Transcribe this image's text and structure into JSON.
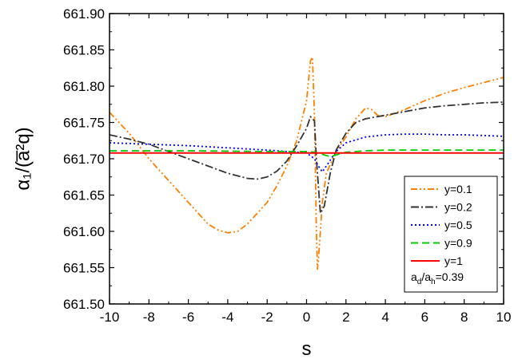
{
  "chart_data": {
    "type": "line",
    "xlabel": "s",
    "ylabel": "α₁/(a̅²q)",
    "xlim": [
      -10,
      10
    ],
    "ylim": [
      661.5,
      661.9
    ],
    "xticks": [
      -10,
      -8,
      -6,
      -4,
      -2,
      0,
      2,
      4,
      6,
      8,
      10
    ],
    "xtick_labels": [
      "-10",
      "-8",
      "-6",
      "-4",
      "-2",
      "0",
      "2",
      "4",
      "6",
      "8",
      "10"
    ],
    "yticks": [
      661.5,
      661.55,
      661.6,
      661.65,
      661.7,
      661.75,
      661.8,
      661.85,
      661.9
    ],
    "ytick_labels": [
      "661.50",
      "661.55",
      "661.60",
      "661.65",
      "661.70",
      "661.75",
      "661.80",
      "661.85",
      "661.90"
    ],
    "grid": false,
    "legend_position": "bottom-right",
    "annotation": "ad/ah=0.39",
    "series": [
      {
        "name": "y=0.1",
        "color": "#ff8000",
        "dash": "dash-dot-dot",
        "x": [
          -10,
          -9,
          -8,
          -7,
          -6,
          -5,
          -4.5,
          -4,
          -3.5,
          -3,
          -2,
          -1.5,
          -1,
          -0.5,
          0,
          0.2,
          0.3,
          0.4,
          0.5,
          0.55,
          0.6,
          0.8,
          1,
          1.5,
          2,
          2.5,
          3,
          3.3,
          3.6,
          4,
          5,
          6,
          7,
          8,
          9,
          10
        ],
        "y": [
          661.764,
          661.735,
          661.7,
          661.67,
          661.64,
          661.61,
          661.602,
          661.598,
          661.6,
          661.61,
          661.64,
          661.663,
          661.69,
          661.725,
          661.78,
          661.835,
          661.84,
          661.76,
          661.6,
          661.548,
          661.56,
          661.64,
          661.68,
          661.71,
          661.73,
          661.755,
          661.77,
          661.768,
          661.76,
          661.758,
          661.768,
          661.78,
          661.79,
          661.798,
          661.805,
          661.812
        ]
      },
      {
        "name": "y=0.2",
        "color": "#333333",
        "dash": "dash-dot",
        "x": [
          -10,
          -9,
          -8,
          -7,
          -6,
          -5,
          -4,
          -3,
          -2.5,
          -2,
          -1.5,
          -1,
          -0.5,
          0,
          0.2,
          0.4,
          0.5,
          0.7,
          0.9,
          1.2,
          1.5,
          2,
          2.5,
          3,
          4,
          5,
          6,
          7,
          8,
          9,
          10
        ],
        "y": [
          661.733,
          661.727,
          661.72,
          661.71,
          661.7,
          661.69,
          661.68,
          661.673,
          661.672,
          661.675,
          661.683,
          661.697,
          661.718,
          661.742,
          661.758,
          661.752,
          661.7,
          661.625,
          661.635,
          661.68,
          661.712,
          661.735,
          661.75,
          661.755,
          661.76,
          661.765,
          661.77,
          661.773,
          661.775,
          661.777,
          661.778
        ]
      },
      {
        "name": "y=0.5",
        "color": "#0000ff",
        "dash": "dot",
        "x": [
          -10,
          -8,
          -6,
          -4,
          -2,
          -1,
          0,
          0.4,
          0.6,
          0.8,
          1,
          1.5,
          2,
          3,
          4,
          5,
          6,
          7,
          8,
          9,
          10
        ],
        "y": [
          661.722,
          661.72,
          661.718,
          661.715,
          661.712,
          661.71,
          661.708,
          661.7,
          661.69,
          661.682,
          661.69,
          661.71,
          661.722,
          661.73,
          661.733,
          661.734,
          661.734,
          661.733,
          661.733,
          661.732,
          661.731
        ]
      },
      {
        "name": "y=0.9",
        "color": "#00cc00",
        "dash": "dash",
        "x": [
          -10,
          -6,
          -2,
          -1,
          0,
          0.4,
          0.8,
          1.2,
          1.6,
          2,
          3,
          4,
          6,
          8,
          10
        ],
        "y": [
          661.711,
          661.711,
          661.71,
          661.71,
          661.71,
          661.709,
          661.706,
          661.703,
          661.706,
          661.709,
          661.711,
          661.712,
          661.712,
          661.712,
          661.712
        ]
      },
      {
        "name": "y=1",
        "color": "#ff0000",
        "dash": "solid",
        "x": [
          -10,
          10
        ],
        "y": [
          661.708,
          661.708
        ]
      }
    ]
  }
}
